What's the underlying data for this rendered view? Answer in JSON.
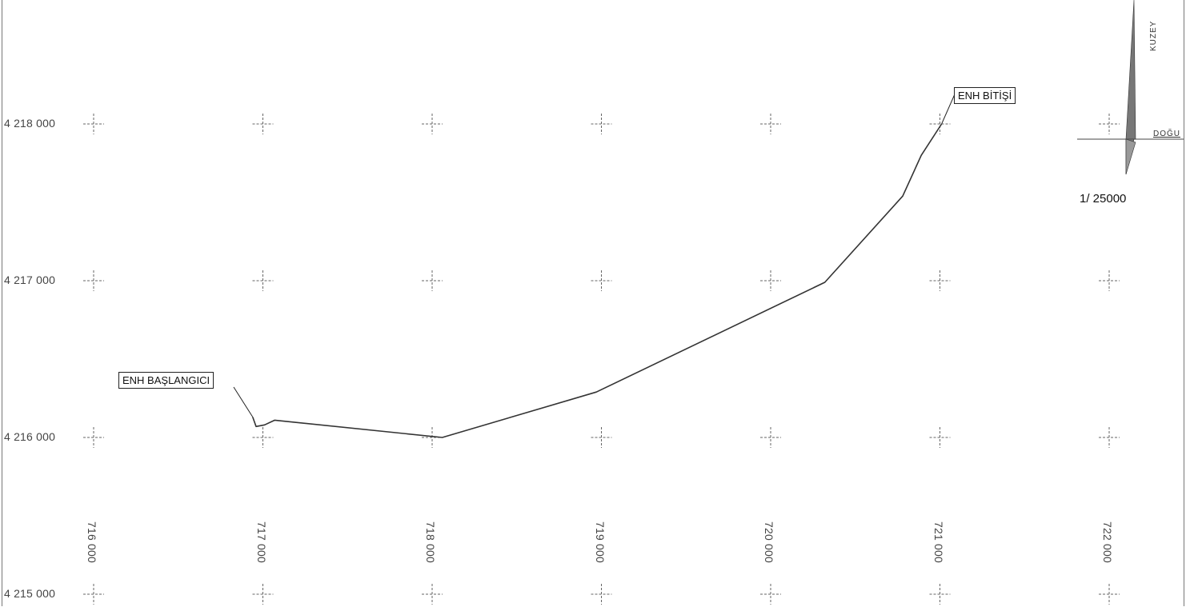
{
  "map": {
    "northing_labels": [
      "4 218 000",
      "4 217 000",
      "4 216 000",
      "4 215 000"
    ],
    "easting_labels": [
      "716 000",
      "717 000",
      "718 000",
      "719 000",
      "720 000",
      "721 000",
      "722 000"
    ],
    "route": [
      [
        716940,
        4216130
      ],
      [
        716960,
        4216070
      ],
      [
        717010,
        4216080
      ],
      [
        717070,
        4216110
      ],
      [
        718060,
        4216000
      ],
      [
        718970,
        4216290
      ],
      [
        720320,
        4216990
      ],
      [
        720780,
        4217540
      ],
      [
        720890,
        4217800
      ],
      [
        721010,
        4218000
      ]
    ],
    "start_label": "ENH BAŞLANGICI",
    "end_label": "ENH BİTİŞİ",
    "scale": "1/ 25000",
    "north_label": "KUZEY",
    "east_label": "DOĞU",
    "line_color": "#333333"
  }
}
